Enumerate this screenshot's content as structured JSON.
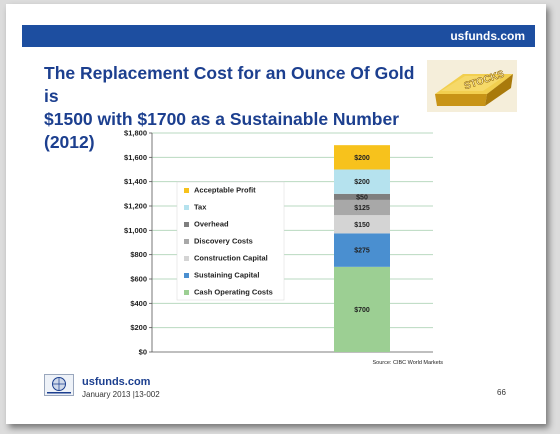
{
  "header": {
    "site": "usfunds.com"
  },
  "title": {
    "line1": "The Replacement Cost for an Ounce Of Gold is",
    "line2": "$1500 with $1700 as a Sustainable Number (2012)"
  },
  "badge": {
    "text": "STOCKS"
  },
  "source": "Source: CIBC World Markets",
  "footer": {
    "site": "usfunds.com",
    "date": "January 2013 |13-002",
    "page": "66"
  },
  "colors": {
    "header": "#1d4ea0",
    "title": "#1c3f8f",
    "gridline": "#b9d9c0"
  },
  "chart_data": {
    "type": "bar",
    "stacked": true,
    "categories": [
      ""
    ],
    "ylim": [
      0,
      1800
    ],
    "yticks": [
      "$0",
      "$200",
      "$400",
      "$600",
      "$800",
      "$1,000",
      "$1,200",
      "$1,400",
      "$1,600",
      "$1,800"
    ],
    "grid": true,
    "legend_position": "left",
    "series": [
      {
        "name": "Cash Operating Costs",
        "values": [
          700
        ],
        "label": "$700",
        "color": "#9ccf93"
      },
      {
        "name": "Sustaining Capital",
        "values": [
          275
        ],
        "label": "$275",
        "color": "#4a8fd0"
      },
      {
        "name": "Construction Capital",
        "values": [
          150
        ],
        "label": "$150",
        "color": "#d4d4d4"
      },
      {
        "name": "Discovery Costs",
        "values": [
          125
        ],
        "label": "$125",
        "color": "#a8a8a8"
      },
      {
        "name": "Overhead",
        "values": [
          50
        ],
        "label": "$50",
        "color": "#7f7f7f"
      },
      {
        "name": "Tax",
        "values": [
          200
        ],
        "label": "$200",
        "color": "#b5e2ee"
      },
      {
        "name": "Acceptable Profit",
        "values": [
          200
        ],
        "label": "$200",
        "color": "#f7c21c"
      }
    ],
    "legend_order": [
      "Acceptable Profit",
      "Tax",
      "Overhead",
      "Discovery Costs",
      "Construction Capital",
      "Sustaining Capital",
      "Cash Operating Costs"
    ]
  }
}
